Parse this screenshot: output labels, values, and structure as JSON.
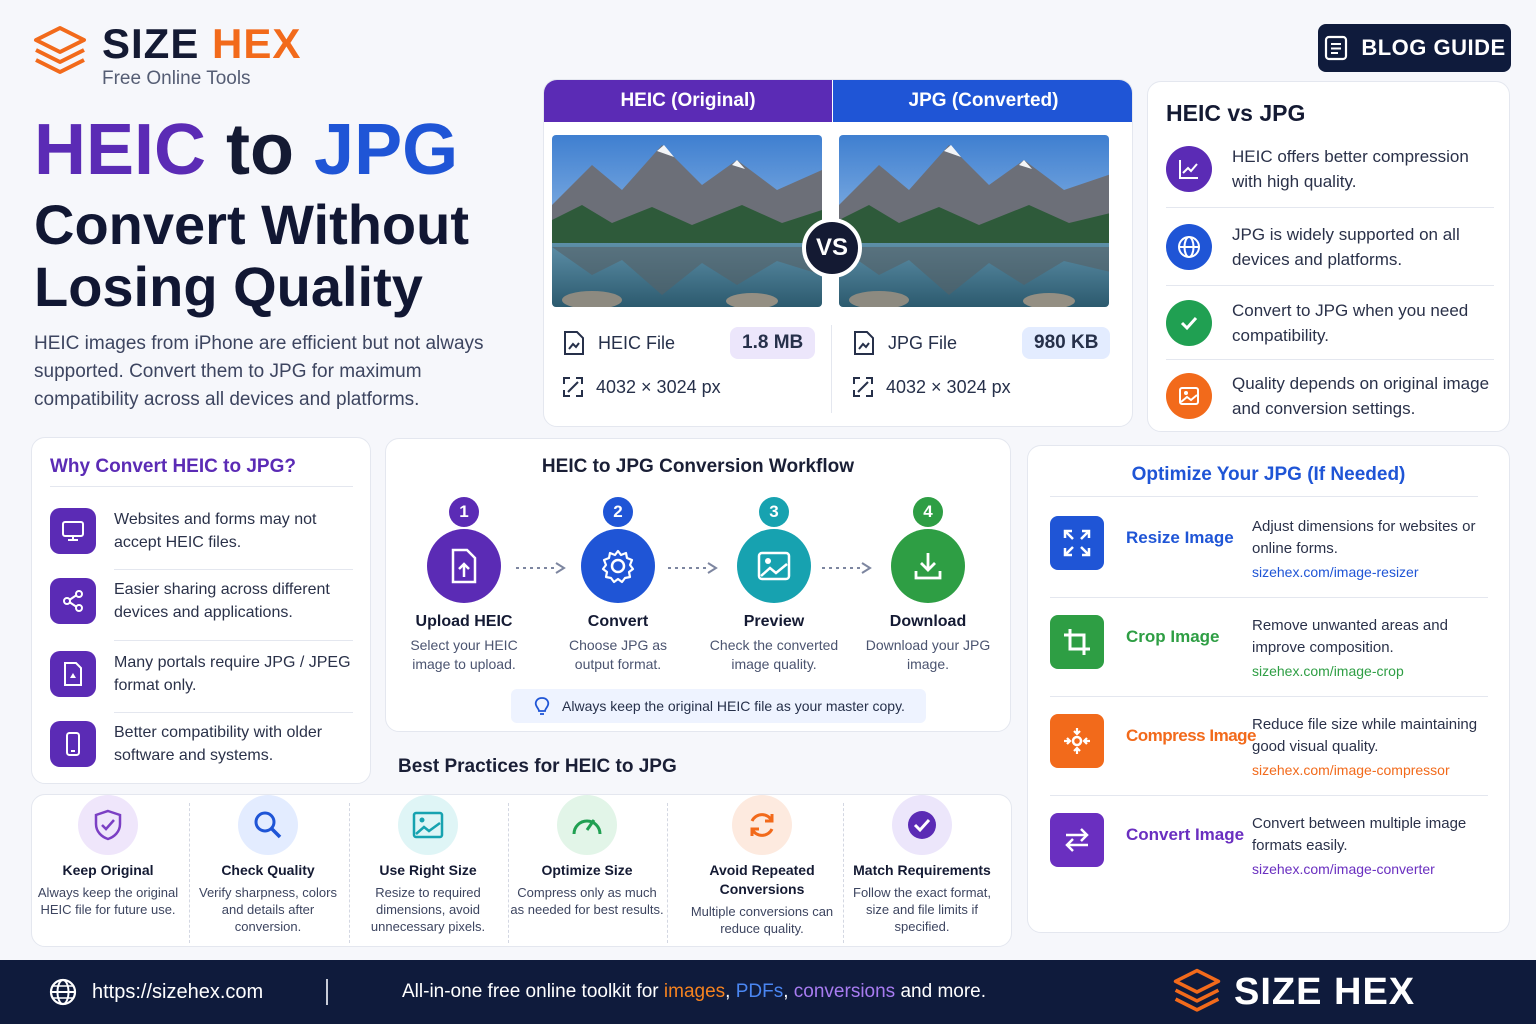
{
  "header": {
    "brand_part1": "SIZE",
    "brand_part2": "HEX",
    "tagline": "Free Online Tools",
    "blog_button": "BLOG GUIDE"
  },
  "hero": {
    "title_heic": "HEIC",
    "title_to": "to",
    "title_jpg": "JPG",
    "subtitle": "Convert Without Losing Quality",
    "description": "HEIC images from iPhone are efficient but not always supported. Convert them to JPG for maximum compatibility across all devices and platforms."
  },
  "compare": {
    "left_header": "HEIC (Original)",
    "right_header": "JPG (Converted)",
    "vs": "VS",
    "left_file_label": "HEIC File",
    "left_size": "1.8 MB",
    "left_dims": "4032 × 3024 px",
    "right_file_label": "JPG File",
    "right_size": "980 KB",
    "right_dims": "4032 × 3024 px"
  },
  "heic_vs_jpg": {
    "title": "HEIC vs JPG",
    "items": [
      {
        "text": "HEIC offers better compression with high quality.",
        "icon": "trend-up-icon",
        "color": "#5b2bb5"
      },
      {
        "text": "JPG is widely supported on all devices and platforms.",
        "icon": "globe-icon",
        "color": "#1f55d6"
      },
      {
        "text": "Convert to JPG when you need compatibility.",
        "icon": "check-icon",
        "color": "#20a052"
      },
      {
        "text": "Quality depends on original image and conversion settings.",
        "icon": "image-icon",
        "color": "#f26a1b"
      }
    ]
  },
  "why": {
    "title": "Why Convert HEIC to JPG?",
    "items": [
      {
        "text": "Websites and forms may not accept HEIC files.",
        "icon": "monitor-icon"
      },
      {
        "text": "Easier sharing across different devices and applications.",
        "icon": "share-icon"
      },
      {
        "text": "Many portals require JPG / JPEG format only.",
        "icon": "document-icon"
      },
      {
        "text": "Better compatibility with older software and systems.",
        "icon": "phone-icon"
      }
    ]
  },
  "workflow": {
    "title": "HEIC to JPG Conversion Workflow",
    "steps": [
      {
        "num": "1",
        "title": "Upload HEIC",
        "desc": "Select your HEIC image to upload.",
        "color": "#5b2bb5",
        "icon": "upload-file-icon"
      },
      {
        "num": "2",
        "title": "Convert",
        "desc": "Choose JPG as output format.",
        "color": "#1f55d6",
        "icon": "gear-icon"
      },
      {
        "num": "3",
        "title": "Preview",
        "desc": "Check the converted image quality.",
        "color": "#17a2b0",
        "icon": "image-icon"
      },
      {
        "num": "4",
        "title": "Download",
        "desc": "Download your JPG image.",
        "color": "#2e9e44",
        "icon": "download-icon"
      }
    ],
    "tip": "Always keep the original HEIC file as your master copy."
  },
  "best_practices": {
    "title": "Best Practices for HEIC to JPG",
    "items": [
      {
        "title": "Keep Original",
        "desc": "Always keep the original HEIC file for future use.",
        "icon": "shield-check-icon",
        "color": "#7b3fc4",
        "bg": "#efe6fb"
      },
      {
        "title": "Check Quality",
        "desc": "Verify sharpness, colors and details after conversion.",
        "icon": "search-icon",
        "color": "#1f55d6",
        "bg": "#e3ecff"
      },
      {
        "title": "Use Right Size",
        "desc": "Resize to required dimensions, avoid unnecessary pixels.",
        "icon": "image-icon",
        "color": "#17a2b0",
        "bg": "#dff5f6"
      },
      {
        "title": "Optimize Size",
        "desc": "Compress only as much as needed for best results.",
        "icon": "gauge-icon",
        "color": "#20a052",
        "bg": "#e2f5e8"
      },
      {
        "title": "Avoid Repeated Conversions",
        "desc": "Multiple conversions can reduce quality.",
        "icon": "refresh-icon",
        "color": "#f26a1b",
        "bg": "#fdeadf"
      },
      {
        "title": "Match Requirements",
        "desc": "Follow the exact format, size and file limits if specified.",
        "icon": "check-circle-icon",
        "color": "#5b2bb5",
        "bg": "#ece6fb"
      }
    ]
  },
  "optimize": {
    "title": "Optimize Your JPG (If Needed)",
    "tools": [
      {
        "name": "Resize Image",
        "desc": "Adjust dimensions for websites or online forms.",
        "link": "sizehex.com/image-resizer",
        "color": "#1f55d6",
        "icon": "resize-icon"
      },
      {
        "name": "Crop Image",
        "desc": "Remove unwanted areas and improve composition.",
        "link": "sizehex.com/image-crop",
        "color": "#2e9e44",
        "icon": "crop-icon"
      },
      {
        "name": "Compress Image",
        "desc": "Reduce file size while maintaining good visual quality.",
        "link": "sizehex.com/image-compressor",
        "color": "#f26a1b",
        "icon": "compress-icon"
      },
      {
        "name": "Convert Image",
        "desc": "Convert between multiple image formats easily.",
        "link": "sizehex.com/image-converter",
        "color": "#6a2fc0",
        "icon": "swap-icon"
      }
    ]
  },
  "footer": {
    "url": "https://sizehex.com",
    "text_1": "All-in-one free online toolkit for ",
    "text_images": "images",
    "text_comma": ", ",
    "text_pdfs": "PDFs",
    "text_comma2": ", ",
    "text_conversions": "conversions",
    "text_2": " and more.",
    "brand": "SIZE HEX"
  },
  "colors": {
    "purple": "#5b2bb5",
    "blue": "#1f55d6",
    "orange": "#f26a1b",
    "navy": "#0f1b3c"
  }
}
